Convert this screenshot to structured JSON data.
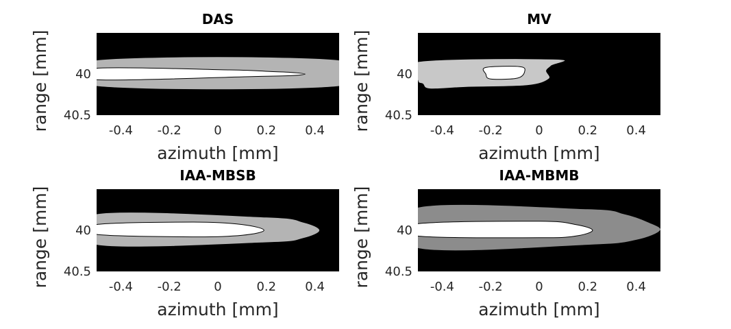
{
  "chart_data": [
    {
      "type": "contour",
      "title": "DAS",
      "xlabel": "azimuth [mm]",
      "ylabel": "range [mm]",
      "xlim": [
        -0.5,
        0.5
      ],
      "ylim": [
        39.5,
        40.5
      ],
      "y_reversed": true,
      "xticks": [
        -0.4,
        -0.2,
        0,
        0.2,
        0.4
      ],
      "xtick_labels": [
        "-0.4",
        "-0.2",
        "0",
        "0.2",
        "0.4"
      ],
      "yticks": [
        40,
        40.5
      ],
      "ytick_labels": [
        "40",
        "40.5"
      ],
      "background_color": "#000000",
      "regions": [
        {
          "level": "outer",
          "color": "#b4b4b4",
          "points": [
            [
              -0.5,
              39.83
            ],
            [
              0.5,
              39.83
            ],
            [
              0.5,
              40.15
            ],
            [
              -0.5,
              40.15
            ]
          ]
        },
        {
          "level": "inner",
          "color": "#ffffff",
          "points": [
            [
              -0.5,
              39.93
            ],
            [
              0.05,
              39.95
            ],
            [
              0.22,
              39.97
            ],
            [
              0.3,
              39.98
            ],
            [
              0.36,
              40.0
            ],
            [
              0.3,
              40.02
            ],
            [
              0.15,
              40.03
            ],
            [
              -0.5,
              40.07
            ]
          ]
        }
      ]
    },
    {
      "type": "contour",
      "title": "MV",
      "xlabel": "azimuth [mm]",
      "ylabel": "range [mm]",
      "xlim": [
        -0.5,
        0.5
      ],
      "ylim": [
        39.5,
        40.5
      ],
      "y_reversed": true,
      "xticks": [
        -0.4,
        -0.2,
        0,
        0.2,
        0.4
      ],
      "xtick_labels": [
        "-0.4",
        "-0.2",
        "0",
        "0.2",
        "0.4"
      ],
      "yticks": [
        40,
        40.5
      ],
      "ytick_labels": [
        "40",
        "40.5"
      ],
      "background_color": "#000000",
      "regions": [
        {
          "level": "outer",
          "color": "#c8c8c8",
          "points": [
            [
              -0.5,
              39.85
            ],
            [
              0.07,
              39.82
            ],
            [
              0.05,
              39.9
            ],
            [
              0.03,
              39.96
            ],
            [
              0.04,
              40.06
            ],
            [
              -0.05,
              40.14
            ],
            [
              -0.3,
              40.16
            ],
            [
              -0.45,
              40.18
            ],
            [
              -0.48,
              40.12
            ],
            [
              -0.5,
              40.08
            ]
          ]
        },
        {
          "level": "inner",
          "color": "#ffffff",
          "points": [
            [
              -0.22,
              39.92
            ],
            [
              -0.08,
              39.91
            ],
            [
              -0.06,
              39.97
            ],
            [
              -0.09,
              40.05
            ],
            [
              -0.2,
              40.06
            ],
            [
              -0.22,
              40.0
            ]
          ]
        }
      ]
    },
    {
      "type": "contour",
      "title": "IAA-MBSB",
      "xlabel": "azimuth [mm]",
      "ylabel": "range [mm]",
      "xlim": [
        -0.5,
        0.5
      ],
      "ylim": [
        39.5,
        40.5
      ],
      "y_reversed": true,
      "xticks": [
        -0.4,
        -0.2,
        0,
        0.2,
        0.4
      ],
      "xtick_labels": [
        "-0.4",
        "-0.2",
        "0",
        "0.2",
        "0.4"
      ],
      "yticks": [
        40,
        40.5
      ],
      "ytick_labels": [
        "40",
        "40.5"
      ],
      "background_color": "#000000",
      "regions": [
        {
          "level": "outer",
          "color": "#b4b4b4",
          "points": [
            [
              -0.5,
              39.8
            ],
            [
              0.2,
              39.84
            ],
            [
              0.35,
              39.9
            ],
            [
              0.42,
              40.0
            ],
            [
              0.35,
              40.1
            ],
            [
              0.2,
              40.15
            ],
            [
              -0.5,
              40.18
            ]
          ]
        },
        {
          "level": "inner",
          "color": "#ffffff",
          "points": [
            [
              -0.5,
              39.93
            ],
            [
              -0.1,
              39.9
            ],
            [
              0.1,
              39.93
            ],
            [
              0.19,
              40.0
            ],
            [
              0.1,
              40.06
            ],
            [
              -0.1,
              40.08
            ],
            [
              -0.5,
              40.05
            ]
          ]
        }
      ]
    },
    {
      "type": "contour",
      "title": "IAA-MBMB",
      "xlabel": "azimuth [mm]",
      "ylabel": "range [mm]",
      "xlim": [
        -0.5,
        0.5
      ],
      "ylim": [
        39.5,
        40.5
      ],
      "y_reversed": true,
      "xticks": [
        -0.4,
        -0.2,
        0,
        0.2,
        0.4
      ],
      "xtick_labels": [
        "-0.4",
        "-0.2",
        "0",
        "0.2",
        "0.4"
      ],
      "yticks": [
        40,
        40.5
      ],
      "ytick_labels": [
        "40",
        "40.5"
      ],
      "background_color": "#000000",
      "regions": [
        {
          "level": "outer",
          "color": "#8c8c8c",
          "points": [
            [
              -0.5,
              39.72
            ],
            [
              0.2,
              39.74
            ],
            [
              0.35,
              39.8
            ],
            [
              0.45,
              39.9
            ],
            [
              0.5,
              40.0
            ],
            [
              0.4,
              40.12
            ],
            [
              0.2,
              40.18
            ],
            [
              -0.5,
              40.22
            ]
          ]
        },
        {
          "level": "inner",
          "color": "#ffffff",
          "points": [
            [
              -0.5,
              39.92
            ],
            [
              0.0,
              39.89
            ],
            [
              0.15,
              39.93
            ],
            [
              0.22,
              40.0
            ],
            [
              0.15,
              40.07
            ],
            [
              0.0,
              40.09
            ],
            [
              -0.5,
              40.07
            ]
          ]
        }
      ]
    }
  ]
}
